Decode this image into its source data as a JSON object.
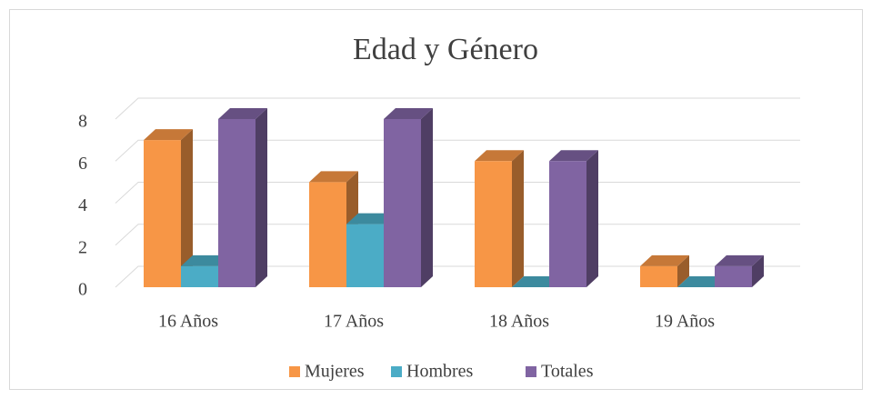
{
  "chart_data": {
    "type": "bar3d",
    "title": "Edad y Género",
    "categories": [
      "16 Años",
      "17 Años",
      "18 Años",
      "19 Años"
    ],
    "series": [
      {
        "name": "Mujeres",
        "color": "#f79646",
        "values": [
          7,
          5,
          6,
          1
        ]
      },
      {
        "name": "Hombres",
        "color": "#4bacc6",
        "values": [
          1,
          3,
          0,
          0
        ]
      },
      {
        "name": "Totales",
        "color": "#8064a2",
        "values": [
          8,
          8,
          6,
          1
        ]
      }
    ],
    "ylim": [
      0,
      8
    ],
    "yticks": [
      0,
      2,
      4,
      6,
      8
    ],
    "grid": true,
    "legend": "bottom"
  }
}
